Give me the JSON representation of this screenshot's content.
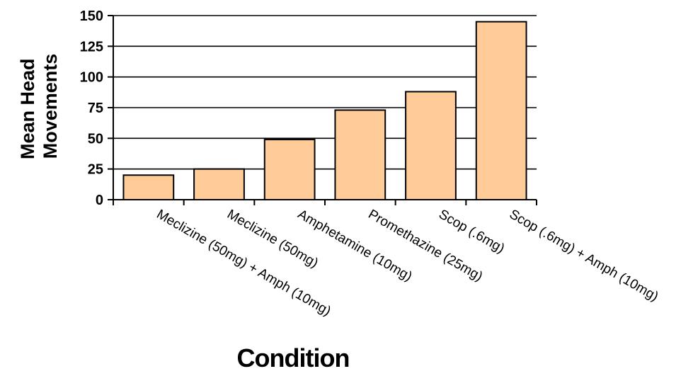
{
  "chart_data": {
    "type": "bar",
    "categories": [
      "Meclizine (50mg) + Amph (10mg)",
      "Meclizine (50mg)",
      "Amphetamine (10mg)",
      "Promethazine (25mg)",
      "Scop (.6mg)",
      "Scop (.6mg) + Amph (10mg)"
    ],
    "values": [
      20,
      25,
      49,
      73,
      88,
      145
    ],
    "ylabel_lines": [
      "Mean Head",
      "Movements"
    ],
    "xlabel": "Condition",
    "ylim": [
      0,
      150
    ],
    "yticks": [
      0,
      25,
      50,
      75,
      100,
      125,
      150
    ],
    "grid": true,
    "bar_color": "#FFCC99",
    "bar_outline_color": "#000000",
    "legend": "none"
  }
}
